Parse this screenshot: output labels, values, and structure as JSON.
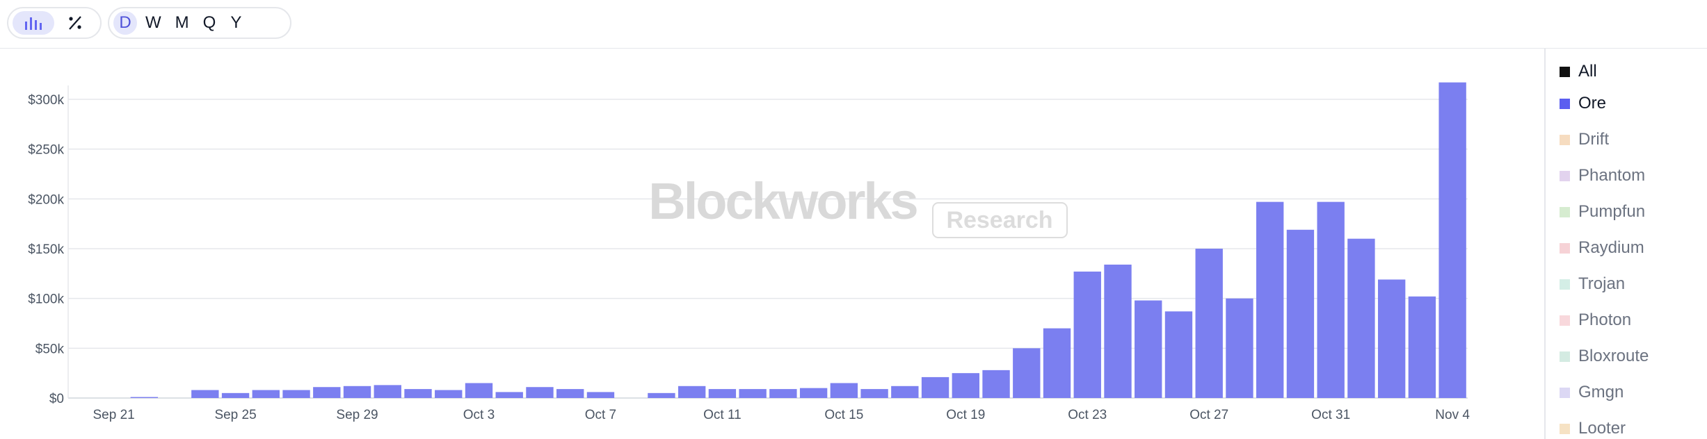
{
  "toolbar": {
    "chart_buttons": [
      {
        "icon": "bar-chart-icon",
        "active": true
      },
      {
        "icon": "percent-icon",
        "active": false
      }
    ],
    "periods": [
      {
        "label": "D",
        "active": true
      },
      {
        "label": "W",
        "active": false
      },
      {
        "label": "M",
        "active": false
      },
      {
        "label": "Q",
        "active": false
      },
      {
        "label": "Y",
        "active": false
      }
    ]
  },
  "watermark": {
    "brand": "Blockworks",
    "tag": "Research"
  },
  "legend": [
    {
      "label": "All",
      "color": "#111111",
      "active": true
    },
    {
      "label": "Ore",
      "color": "#5b5ef0",
      "active": true
    },
    {
      "label": "Drift",
      "color": "#f6dcc0",
      "active": false
    },
    {
      "label": "Phantom",
      "color": "#e2d3ee",
      "active": false
    },
    {
      "label": "Pumpfun",
      "color": "#d6ecd0",
      "active": false
    },
    {
      "label": "Raydium",
      "color": "#f6d2d6",
      "active": false
    },
    {
      "label": "Trojan",
      "color": "#d4eee6",
      "active": false
    },
    {
      "label": "Photon",
      "color": "#f8d8dc",
      "active": false
    },
    {
      "label": "Bloxroute",
      "color": "#d4ebe2",
      "active": false
    },
    {
      "label": "Gmgn",
      "color": "#dcd8f4",
      "active": false
    },
    {
      "label": "Looter",
      "color": "#f6e2c4",
      "active": false
    }
  ],
  "chart_data": {
    "type": "bar",
    "series": [
      {
        "values": [
          0,
          0,
          1000,
          0,
          8000,
          5000,
          8000,
          8000,
          11000,
          12000,
          13000,
          9000,
          8000,
          15000,
          6000,
          11000,
          9000,
          6000,
          0,
          5000,
          12000,
          9000,
          9000,
          9000,
          10000,
          15000,
          9000,
          12000,
          21000,
          25000,
          28000,
          50000,
          70000,
          127000,
          134000,
          98000,
          87000,
          150000,
          100000,
          197000,
          169000,
          197000,
          160000,
          119000,
          102000,
          317000
        ]
      }
    ],
    "color": "#7b7ff0",
    "categories": [
      "Sep 20",
      "Sep 21",
      "Sep 22",
      "Sep 23",
      "Sep 24",
      "Sep 25",
      "Sep 26",
      "Sep 27",
      "Sep 28",
      "Sep 29",
      "Sep 30",
      "Oct 1",
      "Oct 2",
      "Oct 3",
      "Oct 4",
      "Oct 5",
      "Oct 6",
      "Oct 7",
      "Oct 8",
      "Oct 9",
      "Oct 10",
      "Oct 11",
      "Oct 12",
      "Oct 13",
      "Oct 14",
      "Oct 15",
      "Oct 16",
      "Oct 17",
      "Oct 18",
      "Oct 19",
      "Oct 20",
      "Oct 21",
      "Oct 22",
      "Oct 23",
      "Oct 24",
      "Oct 25",
      "Oct 26",
      "Oct 27",
      "Oct 28",
      "Oct 29",
      "Oct 30",
      "Oct 31",
      "Nov 1",
      "Nov 2",
      "Nov 3",
      "Nov 4"
    ],
    "x_ticks": [
      "Sep 21",
      "Sep 25",
      "Sep 29",
      "Oct 3",
      "Oct 7",
      "Oct 11",
      "Oct 15",
      "Oct 19",
      "Oct 23",
      "Oct 27",
      "Oct 31",
      "Nov 4"
    ],
    "y_ticks": [
      "$0",
      "$50k",
      "$100k",
      "$150k",
      "$200k",
      "$250k",
      "$300k"
    ],
    "ylim": [
      0,
      300000
    ],
    "grid": true
  }
}
